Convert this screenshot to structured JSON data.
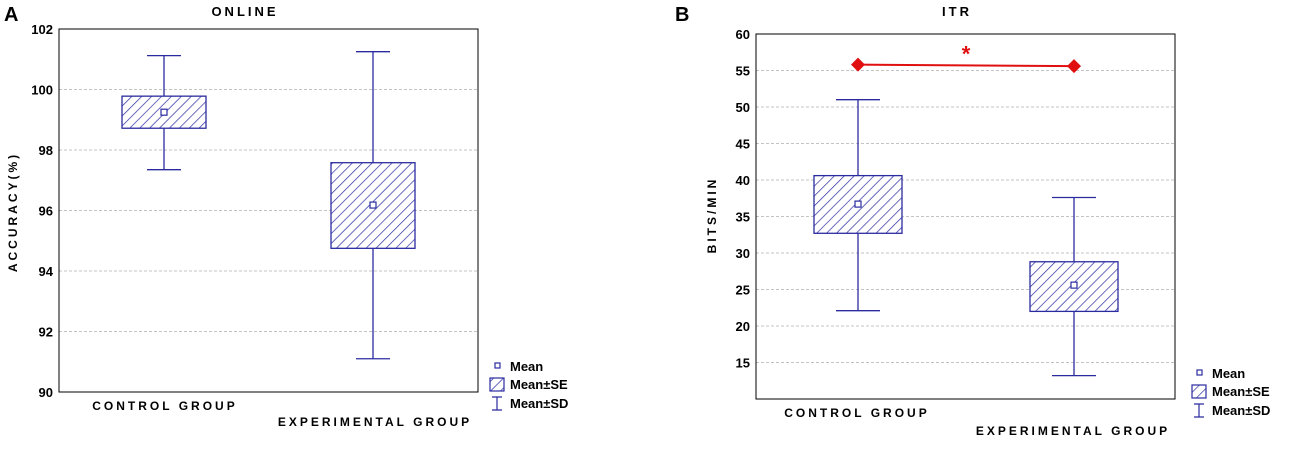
{
  "chart_data": [
    {
      "type": "box",
      "panel_label": "A",
      "title": "ONLINE",
      "xlabel": "",
      "ylabel": "ACCURACY(%)",
      "ylim": [
        90,
        102
      ],
      "yticks": [
        "90",
        "92",
        "94",
        "96",
        "98",
        "100",
        "102"
      ],
      "categories": [
        "CONTROL GROUP",
        "EXPERIMENTAL GROUP"
      ],
      "boxes": [
        {
          "group": "CONTROL GROUP",
          "mean": 99.25,
          "se_low": 98.72,
          "se_high": 99.78,
          "sd_low": 97.35,
          "sd_high": 101.12
        },
        {
          "group": "EXPERIMENTAL GROUP",
          "mean": 96.18,
          "se_low": 94.75,
          "se_high": 97.58,
          "sd_low": 91.1,
          "sd_high": 101.25
        }
      ],
      "legend": [
        "Mean",
        "Mean±SE",
        "Mean±SD"
      ],
      "grid": true
    },
    {
      "type": "box",
      "panel_label": "B",
      "title": "ITR",
      "xlabel": "",
      "ylabel": "BITS/MIN",
      "ylim": [
        10,
        60
      ],
      "yticks": [
        "15",
        "20",
        "25",
        "30",
        "35",
        "40",
        "45",
        "50",
        "55",
        "60"
      ],
      "categories": [
        "CONTROL GROUP",
        "EXPERIMENTAL GROUP"
      ],
      "boxes": [
        {
          "group": "CONTROL GROUP",
          "mean": 36.7,
          "se_low": 32.7,
          "se_high": 40.6,
          "sd_low": 22.1,
          "sd_high": 51.0
        },
        {
          "group": "EXPERIMENTAL GROUP",
          "mean": 25.6,
          "se_low": 22.0,
          "se_high": 28.8,
          "sd_low": 13.2,
          "sd_high": 37.6
        }
      ],
      "significance": {
        "marker": "*",
        "y_start": 55.8,
        "y_end": 55.6
      },
      "legend": [
        "Mean",
        "Mean±SE",
        "Mean±SD"
      ],
      "grid": true
    }
  ],
  "colors": {
    "box": "#2b2ba0",
    "significance": "#e01010",
    "grid": "#b0b0b0"
  }
}
